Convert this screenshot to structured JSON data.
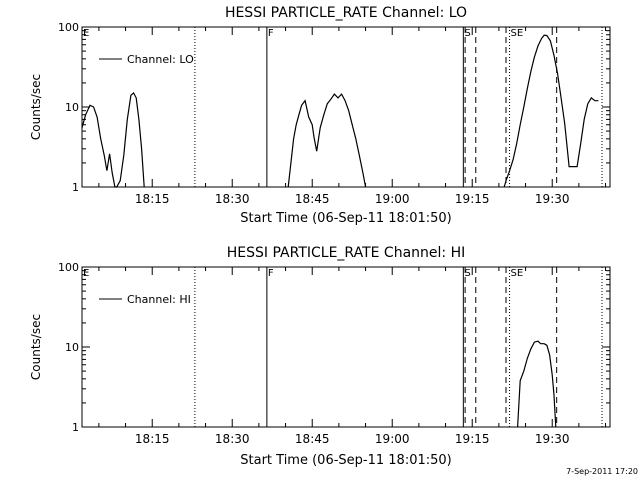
{
  "footer": {
    "timestamp": "7-Sep-2011 17:20"
  },
  "chart_data": [
    {
      "type": "line",
      "title": "HESSI PARTICLE_RATE Channel: LO",
      "xlabel": "Start Time (06-Sep-11 18:01:50)",
      "ylabel": "Counts/sec",
      "y_scale": "log",
      "ylim": [
        1,
        100
      ],
      "xlim": [
        "18:01:50",
        "19:40:50"
      ],
      "yticks": [
        {
          "v": 1,
          "label": "1"
        },
        {
          "v": 10,
          "label": "10"
        },
        {
          "v": 100,
          "label": "100"
        }
      ],
      "xticks": [
        {
          "t": "18:15",
          "label": "18:15"
        },
        {
          "t": "18:30",
          "label": "18:30"
        },
        {
          "t": "18:45",
          "label": "18:45"
        },
        {
          "t": "19:00",
          "label": "19:00"
        },
        {
          "t": "19:15",
          "label": "19:15"
        },
        {
          "t": "19:30",
          "label": "19:30"
        }
      ],
      "legend": {
        "label": "Channel: LO",
        "position": "top-left"
      },
      "event_lines": [
        {
          "t": "18:01:50",
          "style": "solid",
          "label": "E"
        },
        {
          "t": "18:23:00",
          "style": "dotted",
          "label": ""
        },
        {
          "t": "18:36:30",
          "style": "solid",
          "label": "F"
        },
        {
          "t": "19:13:20",
          "style": "solid",
          "label": "S"
        },
        {
          "t": "19:13:40",
          "style": "dashed",
          "label": ""
        },
        {
          "t": "19:15:40",
          "style": "dashed",
          "label": ""
        },
        {
          "t": "19:21:20",
          "style": "dashed",
          "label": ""
        },
        {
          "t": "19:22:00",
          "style": "dotted",
          "label": "SE"
        },
        {
          "t": "19:30:50",
          "style": "dashed",
          "label": ""
        },
        {
          "t": "19:39:20",
          "style": "dotted",
          "label": ""
        }
      ],
      "series": [
        {
          "segments": [
            [
              [
                "18:01:50",
                5.5
              ],
              [
                "18:02:30",
                8
              ],
              [
                "18:03:20",
                10.5
              ],
              [
                "18:04:00",
                10
              ],
              [
                "18:04:40",
                7.5
              ],
              [
                "18:05:20",
                4
              ],
              [
                "18:06:00",
                2.5
              ],
              [
                "18:06:30",
                1.6
              ],
              [
                "18:07:00",
                2.6
              ],
              [
                "18:07:30",
                1.5
              ],
              [
                "18:08:00",
                1
              ],
              [
                "18:08:20",
                1
              ],
              [
                "18:09:00",
                1.2
              ],
              [
                "18:09:40",
                2.5
              ],
              [
                "18:10:20",
                7
              ],
              [
                "18:11:00",
                14
              ],
              [
                "18:11:30",
                15
              ],
              [
                "18:12:00",
                13
              ],
              [
                "18:12:30",
                7
              ],
              [
                "18:13:00",
                3
              ],
              [
                "18:13:30",
                1
              ]
            ],
            [
              [
                "18:40:30",
                1
              ],
              [
                "18:41:00",
                2
              ],
              [
                "18:41:30",
                4
              ],
              [
                "18:42:00",
                6
              ],
              [
                "18:42:30",
                8
              ],
              [
                "18:43:00",
                10.5
              ],
              [
                "18:43:40",
                12
              ],
              [
                "18:44:20",
                7.5
              ],
              [
                "18:45:00",
                6
              ],
              [
                "18:45:20",
                4.2
              ],
              [
                "18:45:50",
                2.8
              ],
              [
                "18:46:30",
                5.5
              ],
              [
                "18:47:10",
                8
              ],
              [
                "18:47:50",
                11
              ],
              [
                "18:48:30",
                12.5
              ],
              [
                "18:49:10",
                14.5
              ],
              [
                "18:49:50",
                13
              ],
              [
                "18:50:30",
                14.5
              ],
              [
                "18:51:10",
                12
              ],
              [
                "18:51:50",
                9
              ],
              [
                "18:52:30",
                6
              ],
              [
                "18:53:10",
                4
              ],
              [
                "18:53:50",
                2.5
              ],
              [
                "18:54:30",
                1.5
              ],
              [
                "18:55:00",
                1
              ]
            ],
            [
              [
                "19:21:00",
                1
              ],
              [
                "19:21:20",
                1.2
              ],
              [
                "19:22:00",
                1.6
              ],
              [
                "19:22:40",
                2.2
              ],
              [
                "19:23:20",
                3.5
              ],
              [
                "19:24:00",
                6
              ],
              [
                "19:24:40",
                10
              ],
              [
                "19:25:20",
                17
              ],
              [
                "19:26:00",
                28
              ],
              [
                "19:26:40",
                42
              ],
              [
                "19:27:20",
                58
              ],
              [
                "19:28:00",
                72
              ],
              [
                "19:28:30",
                79
              ],
              [
                "19:29:00",
                78
              ],
              [
                "19:29:40",
                67
              ],
              [
                "19:30:20",
                44
              ],
              [
                "19:31:00",
                26
              ],
              [
                "19:31:40",
                13
              ],
              [
                "19:32:20",
                6.2
              ],
              [
                "19:32:50",
                3
              ],
              [
                "19:33:10",
                1.8
              ],
              [
                "19:34:40",
                1.8
              ],
              [
                "19:35:20",
                3.5
              ],
              [
                "19:36:00",
                7
              ],
              [
                "19:36:40",
                11
              ],
              [
                "19:37:20",
                13
              ],
              [
                "19:38:00",
                12
              ],
              [
                "19:38:40",
                12
              ]
            ]
          ]
        }
      ]
    },
    {
      "type": "line",
      "title": "HESSI PARTICLE_RATE Channel: HI",
      "xlabel": "Start Time (06-Sep-11 18:01:50)",
      "ylabel": "Counts/sec",
      "y_scale": "log",
      "ylim": [
        1,
        100
      ],
      "xlim": [
        "18:01:50",
        "19:40:50"
      ],
      "yticks": [
        {
          "v": 1,
          "label": "1"
        },
        {
          "v": 10,
          "label": "10"
        },
        {
          "v": 100,
          "label": "100"
        }
      ],
      "xticks": [
        {
          "t": "18:15",
          "label": "18:15"
        },
        {
          "t": "18:30",
          "label": "18:30"
        },
        {
          "t": "18:45",
          "label": "18:45"
        },
        {
          "t": "19:00",
          "label": "19:00"
        },
        {
          "t": "19:15",
          "label": "19:15"
        },
        {
          "t": "19:30",
          "label": "19:30"
        }
      ],
      "legend": {
        "label": "Channel: HI",
        "position": "top-left"
      },
      "event_lines": [
        {
          "t": "18:01:50",
          "style": "solid",
          "label": "E"
        },
        {
          "t": "18:23:00",
          "style": "dotted",
          "label": ""
        },
        {
          "t": "18:36:30",
          "style": "solid",
          "label": "F"
        },
        {
          "t": "19:13:20",
          "style": "solid",
          "label": "S"
        },
        {
          "t": "19:13:40",
          "style": "dashed",
          "label": ""
        },
        {
          "t": "19:15:40",
          "style": "dashed",
          "label": ""
        },
        {
          "t": "19:21:20",
          "style": "dashed",
          "label": ""
        },
        {
          "t": "19:22:00",
          "style": "dotted",
          "label": "SE"
        },
        {
          "t": "19:30:50",
          "style": "dashed",
          "label": ""
        },
        {
          "t": "19:39:20",
          "style": "dotted",
          "label": ""
        }
      ],
      "series": [
        {
          "segments": [
            [
              [
                "19:23:30",
                1
              ],
              [
                "19:24:00",
                3.8
              ],
              [
                "19:24:40",
                5
              ],
              [
                "19:25:20",
                7.2
              ],
              [
                "19:26:00",
                9.5
              ],
              [
                "19:26:40",
                11.5
              ],
              [
                "19:27:20",
                11.8
              ],
              [
                "19:27:50",
                11
              ],
              [
                "19:28:30",
                11
              ],
              [
                "19:29:00",
                10.5
              ],
              [
                "19:29:30",
                8
              ],
              [
                "19:30:00",
                4.5
              ],
              [
                "19:30:20",
                2.5
              ],
              [
                "19:30:40",
                1
              ]
            ]
          ]
        }
      ]
    }
  ]
}
